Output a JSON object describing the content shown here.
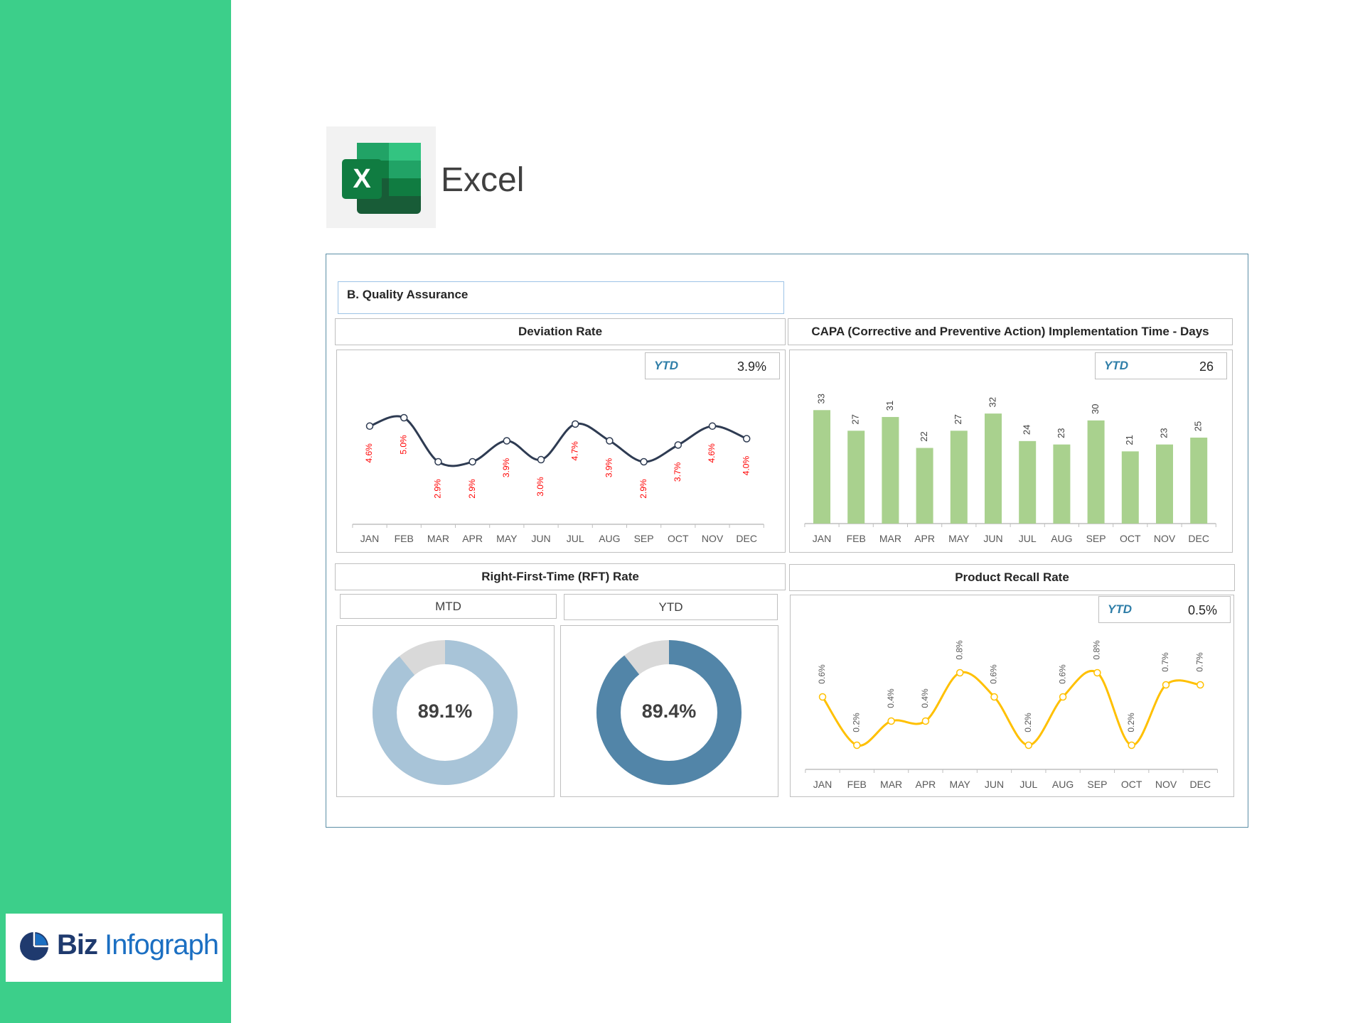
{
  "sidebar": {
    "color": "#3ccf8a",
    "brand": {
      "part1": "Biz",
      "part2": "Infograph"
    }
  },
  "app": {
    "name": "Excel"
  },
  "dashboard": {
    "section_title": "B. Quality Assurance"
  },
  "chart_data": [
    {
      "type": "line",
      "title": "Deviation Rate",
      "ytd_label": "YTD",
      "ytd_value": "3.9%",
      "x": [
        "JAN",
        "FEB",
        "MAR",
        "APR",
        "MAY",
        "JUN",
        "JUL",
        "AUG",
        "SEP",
        "OCT",
        "NOV",
        "DEC"
      ],
      "values": [
        4.6,
        5.0,
        2.9,
        2.9,
        3.9,
        3.0,
        4.7,
        3.9,
        2.9,
        3.7,
        4.6,
        4.0
      ],
      "data_labels": [
        "4.6%",
        "5.0%",
        "2.9%",
        "2.9%",
        "3.9%",
        "3.0%",
        "4.7%",
        "3.9%",
        "2.9%",
        "3.7%",
        "4.6%",
        "4.0%"
      ],
      "line_color": "#2e3b52",
      "label_color": "#ff0000"
    },
    {
      "type": "bar",
      "title": "CAPA (Corrective and Preventive Action) Implementation Time - Days",
      "ytd_label": "YTD",
      "ytd_value": "26",
      "categories": [
        "JAN",
        "FEB",
        "MAR",
        "APR",
        "MAY",
        "JUN",
        "JUL",
        "AUG",
        "SEP",
        "OCT",
        "NOV",
        "DEC"
      ],
      "values": [
        33,
        27,
        31,
        22,
        27,
        32,
        24,
        23,
        30,
        21,
        23,
        25
      ],
      "bar_color": "#a9d18e"
    },
    {
      "type": "pie",
      "title": "Right-First-Time (RFT) Rate",
      "charts": [
        {
          "label": "MTD",
          "value": 89.1,
          "display": "89.1%",
          "color": "#a8c4d8",
          "remainder_color": "#d9d9d9"
        },
        {
          "label": "YTD",
          "value": 89.4,
          "display": "89.4%",
          "color": "#5285a8",
          "remainder_color": "#d9d9d9"
        }
      ]
    },
    {
      "type": "line",
      "title": "Product Recall Rate",
      "ytd_label": "YTD",
      "ytd_value": "0.5%",
      "x": [
        "JAN",
        "FEB",
        "MAR",
        "APR",
        "MAY",
        "JUN",
        "JUL",
        "AUG",
        "SEP",
        "OCT",
        "NOV",
        "DEC"
      ],
      "values": [
        0.6,
        0.2,
        0.4,
        0.4,
        0.8,
        0.6,
        0.2,
        0.6,
        0.8,
        0.2,
        0.7,
        0.7
      ],
      "data_labels": [
        "0.6%",
        "0.2%",
        "0.4%",
        "0.4%",
        "0.8%",
        "0.6%",
        "0.2%",
        "0.6%",
        "0.8%",
        "0.2%",
        "0.7%",
        "0.7%"
      ],
      "line_color": "#ffc000",
      "label_color": "#595959"
    }
  ]
}
